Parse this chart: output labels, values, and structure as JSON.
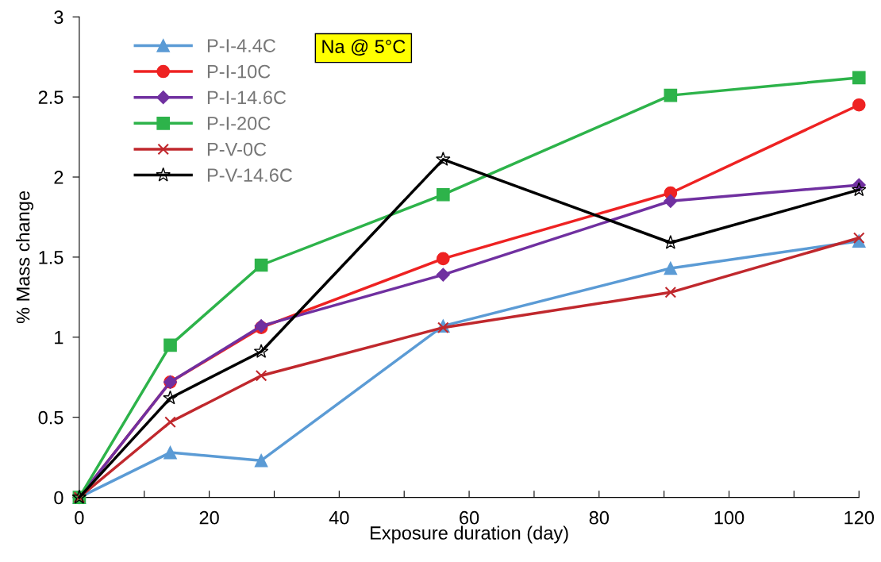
{
  "chart_data": {
    "type": "line",
    "xlabel": "Exposure duration (day)",
    "ylabel": "% Mass change",
    "x": [
      0,
      14,
      28,
      56,
      91,
      120
    ],
    "series": [
      {
        "name": "P-I-4.4C",
        "color": "#5b9bd5",
        "marker": "triangle",
        "values": [
          0,
          0.28,
          0.23,
          1.07,
          1.43,
          1.6
        ]
      },
      {
        "name": "P-I-10C",
        "color": "#ee2222",
        "marker": "circle",
        "values": [
          0,
          0.72,
          1.06,
          1.49,
          1.9,
          2.45
        ]
      },
      {
        "name": "P-I-14.6C",
        "color": "#7030a0",
        "marker": "diamond",
        "values": [
          0,
          0.72,
          1.07,
          1.39,
          1.85,
          1.95
        ]
      },
      {
        "name": "P-I-20C",
        "color": "#2db34a",
        "marker": "square",
        "values": [
          0,
          0.95,
          1.45,
          1.89,
          2.51,
          2.62
        ]
      },
      {
        "name": "P-V-0C",
        "color": "#c0282d",
        "marker": "cross",
        "values": [
          0,
          0.47,
          0.76,
          1.06,
          1.28,
          1.62
        ]
      },
      {
        "name": "P-V-14.6C",
        "color": "#000000",
        "marker": "star",
        "values": [
          0,
          0.62,
          0.91,
          2.11,
          1.59,
          1.92
        ]
      }
    ],
    "xlim": [
      0,
      120
    ],
    "xticks": [
      0,
      {
        "value": 10,
        "label": null
      },
      20,
      {
        "value": 30,
        "label": null
      },
      40,
      {
        "value": 50,
        "label": null
      },
      60,
      {
        "value": 70,
        "label": null
      },
      80,
      {
        "value": 90,
        "label": null
      },
      100,
      {
        "value": 110,
        "label": null
      },
      120
    ],
    "ylim": [
      0,
      3
    ],
    "yticks": [
      0,
      0.5,
      1,
      1.5,
      2,
      2.5,
      3
    ],
    "annotations": [
      "Na @ 5°C"
    ],
    "legend": "top left",
    "grid": false,
    "line_style": "solid"
  }
}
